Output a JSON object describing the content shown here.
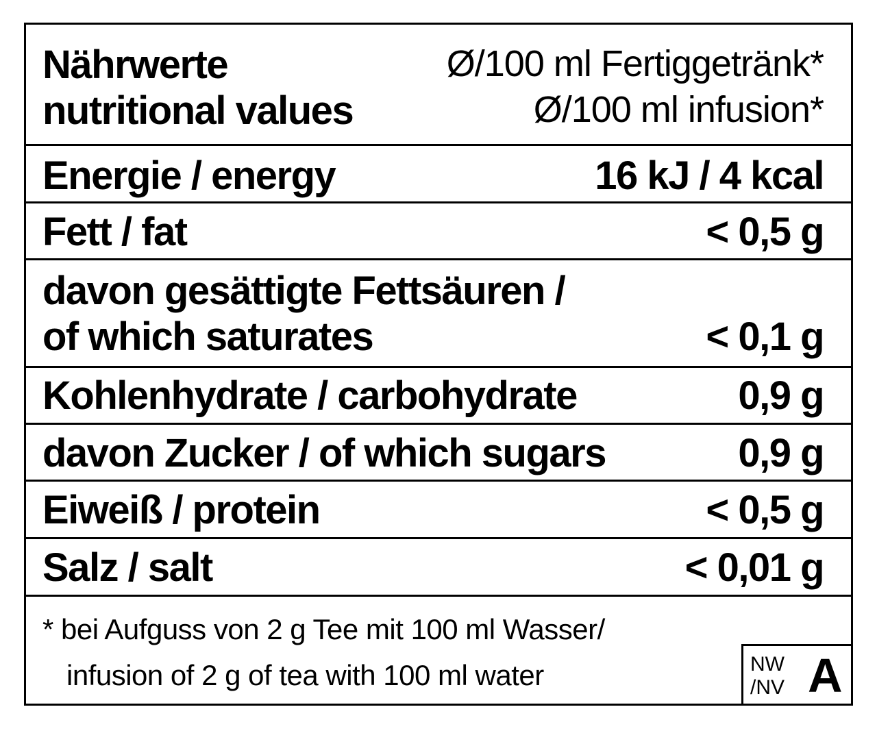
{
  "header": {
    "title_de": "Nährwerte",
    "title_en": "nutritional values",
    "per_de": "Ø/100 ml Fertiggetränk*",
    "per_en": "Ø/100 ml infusion*"
  },
  "rows": [
    {
      "label": "Energie / energy",
      "value": "16 kJ / 4 kcal"
    },
    {
      "label": "Fett / fat",
      "value": "< 0,5 g"
    },
    {
      "label": "davon gesättigte Fettsäuren /",
      "label2": "of which saturates",
      "value": "< 0,1 g"
    },
    {
      "label": "Kohlenhydrate / carbohydrate",
      "value": "0,9 g"
    },
    {
      "label": "davon Zucker / of which sugars",
      "value": "0,9 g"
    },
    {
      "label": "Eiweiß / protein",
      "value": "< 0,5 g"
    },
    {
      "label": "Salz / salt",
      "value": "< 0,01 g"
    }
  ],
  "footnote": {
    "line1": "* bei Aufguss von 2 g Tee mit 100 ml Wasser/",
    "line2": "infusion of 2 g of tea with 100 ml water"
  },
  "badge": {
    "line1": "NW",
    "line2": "/NV",
    "letter": "A"
  }
}
